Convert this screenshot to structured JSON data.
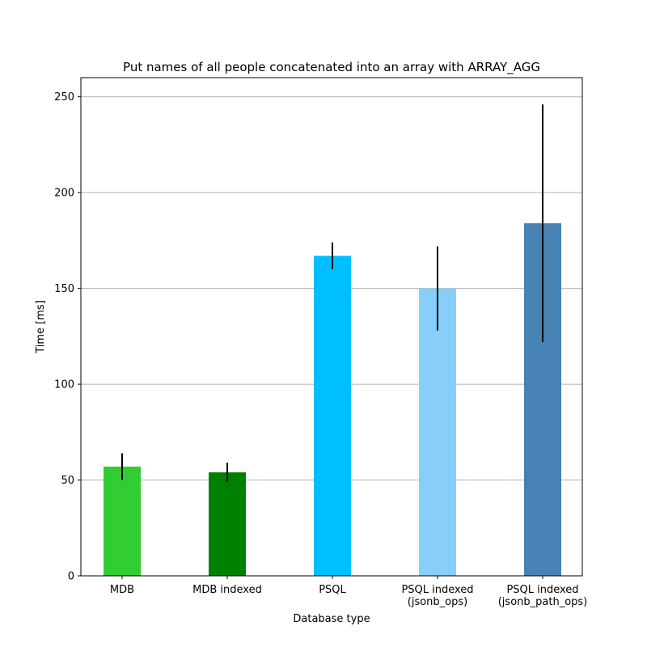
{
  "chart_data": {
    "type": "bar",
    "title": "Put names of all people concatenated into an array with ARRAY_AGG",
    "xlabel": "Database type",
    "ylabel": "Time [ms]",
    "ylim": [
      0,
      260
    ],
    "yticks": [
      0,
      50,
      100,
      150,
      200,
      250
    ],
    "grid": "y",
    "categories": [
      [
        "MDB"
      ],
      [
        "MDB indexed"
      ],
      [
        "PSQL"
      ],
      [
        "PSQL indexed",
        "(jsonb_ops)"
      ],
      [
        "PSQL indexed",
        "(jsonb_path_ops)"
      ]
    ],
    "values": [
      57,
      54,
      167,
      150,
      184
    ],
    "errors": [
      7,
      5,
      7,
      22,
      62
    ],
    "colors": [
      "#32cd32",
      "#008000",
      "#00bfff",
      "#87cefa",
      "#4682b4"
    ]
  }
}
